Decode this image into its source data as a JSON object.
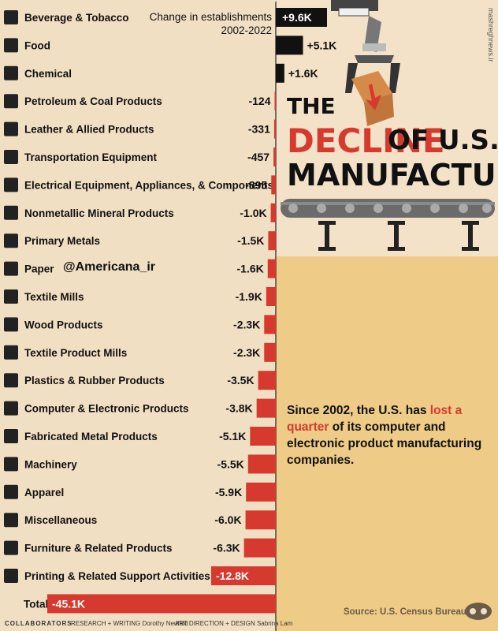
{
  "chart_data": {
    "type": "bar",
    "orientation": "horizontal",
    "subtitle": "Change in establishments 2002-2022",
    "categories": [
      "Beverage & Tobacco",
      "Food",
      "Chemical",
      "Petroleum & Coal Products",
      "Leather & Allied Products",
      "Transportation Equipment",
      "Electrical Equipment, Appliances, & Components",
      "Nonmetallic Mineral Products",
      "Primary Metals",
      "Paper",
      "Textile Mills",
      "Wood Products",
      "Textile Product Mills",
      "Plastics & Rubber Products",
      "Computer & Electronic Products",
      "Fabricated Metal Products",
      "Machinery",
      "Apparel",
      "Miscellaneous",
      "Furniture & Related Products",
      "Printing & Related Support Activities",
      "Total"
    ],
    "values": [
      9600,
      5100,
      1600,
      -124,
      -331,
      -457,
      -895,
      -1000,
      -1500,
      -1600,
      -1900,
      -2300,
      -2300,
      -3500,
      -3800,
      -5100,
      -5500,
      -5900,
      -6000,
      -6300,
      -12800,
      -45100
    ],
    "labels": [
      "+9.6K",
      "+5.1K",
      "+1.6K",
      "-124",
      "-331",
      "-457",
      "-895",
      "-1.0K",
      "-1.5K",
      "-1.6K",
      "-1.9K",
      "-2.3K",
      "-2.3K",
      "-3.5K",
      "-3.8K",
      "-5.1K",
      "-5.5K",
      "-5.9K",
      "-6.0K",
      "-6.3K",
      "-12.8K",
      "-45.1K"
    ],
    "icons": [
      "bottle-icon",
      "fork-knife-icon",
      "flask-icon",
      "oil-pump-icon",
      "leather-hide-icon",
      "truck-icon",
      "plug-icon",
      "mineral-icon",
      "metal-bars-icon",
      "paper-icon",
      "sewing-machine-icon",
      "wood-plank-icon",
      "fabric-icon",
      "rubber-ring-icon",
      "computer-icon",
      "metal-part-icon",
      "machinery-icon",
      "shirt-icon",
      "gear-icon",
      "sofa-icon",
      "printer-icon",
      ""
    ],
    "colors": {
      "positive": "#111111",
      "negative": "#d63a2f",
      "total_label": "#ffffff"
    }
  },
  "title": {
    "line1": "THE",
    "line2a": "DECLINE",
    "line2b": "OF U.S.",
    "line3": "MANUFACTURING"
  },
  "note": {
    "part1": "Since 2002, the U.S. has ",
    "hl1": "lost",
    "hl2": "a quarter",
    "part2": " of its computer and electronic product manufacturing companies."
  },
  "watermark": "@Americana_ir",
  "side_watermark": "mashreghnews.ir",
  "source": "Source: U.S. Census Bureau",
  "footer": {
    "brand": "COLLABORATORS",
    "research": "RESEARCH + WRITING Dorothy Neufeld",
    "art": "ART DIRECTION + DESIGN Sabrina Lam"
  }
}
